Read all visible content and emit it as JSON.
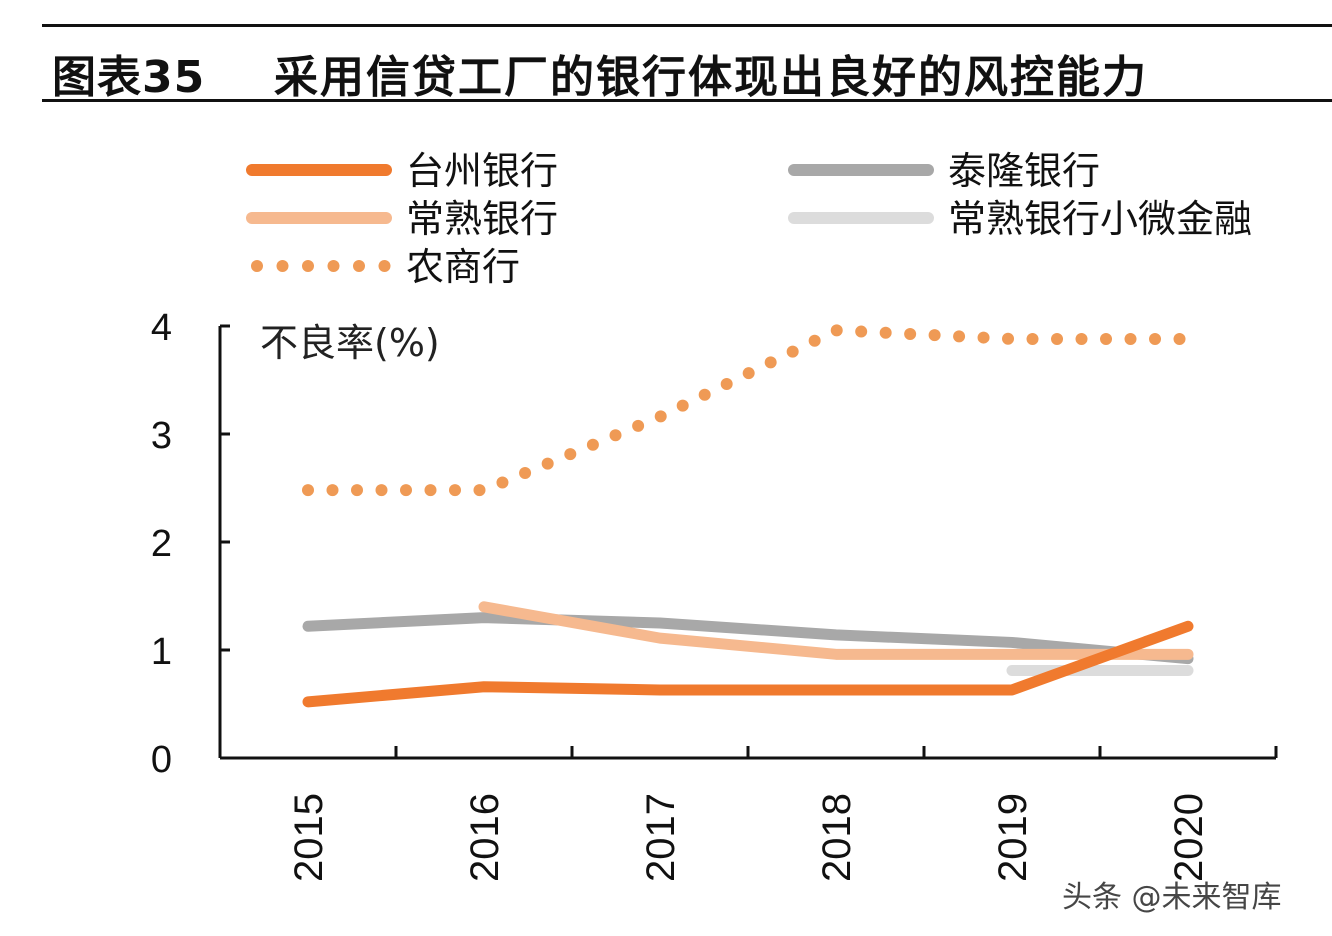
{
  "figure": {
    "label": "图表35",
    "title": "采用信贷工厂的银行体现出良好的风控能力"
  },
  "watermark": "头条 @未来智库",
  "chart_data": {
    "type": "line",
    "title": "采用信贷工厂的银行体现出良好的风控能力",
    "ylabel": "不良率(%)",
    "xlabel": "",
    "ylim": [
      0,
      4
    ],
    "yticks": [
      0,
      1,
      2,
      3,
      4
    ],
    "categories": [
      "2015",
      "2016",
      "2017",
      "2018",
      "2019",
      "2020"
    ],
    "series": [
      {
        "name": "台州银行",
        "color": "#f07a2e",
        "style": "solid",
        "values": [
          0.52,
          0.66,
          0.63,
          0.63,
          0.63,
          1.22
        ]
      },
      {
        "name": "泰隆银行",
        "color": "#a8a8a8",
        "style": "solid",
        "values": [
          1.22,
          1.3,
          1.25,
          1.14,
          1.07,
          0.92
        ]
      },
      {
        "name": "常熟银行",
        "color": "#f6b98f",
        "style": "solid",
        "values": [
          null,
          1.4,
          1.11,
          0.96,
          0.96,
          0.96
        ]
      },
      {
        "name": "常熟银行小微金融",
        "color": "#dcdcdc",
        "style": "solid",
        "values": [
          null,
          null,
          null,
          null,
          0.81,
          0.81
        ]
      },
      {
        "name": "农商行",
        "color": "#ef9a55",
        "style": "dotted",
        "values": [
          2.48,
          2.48,
          3.16,
          3.96,
          3.88,
          3.88
        ]
      }
    ]
  }
}
